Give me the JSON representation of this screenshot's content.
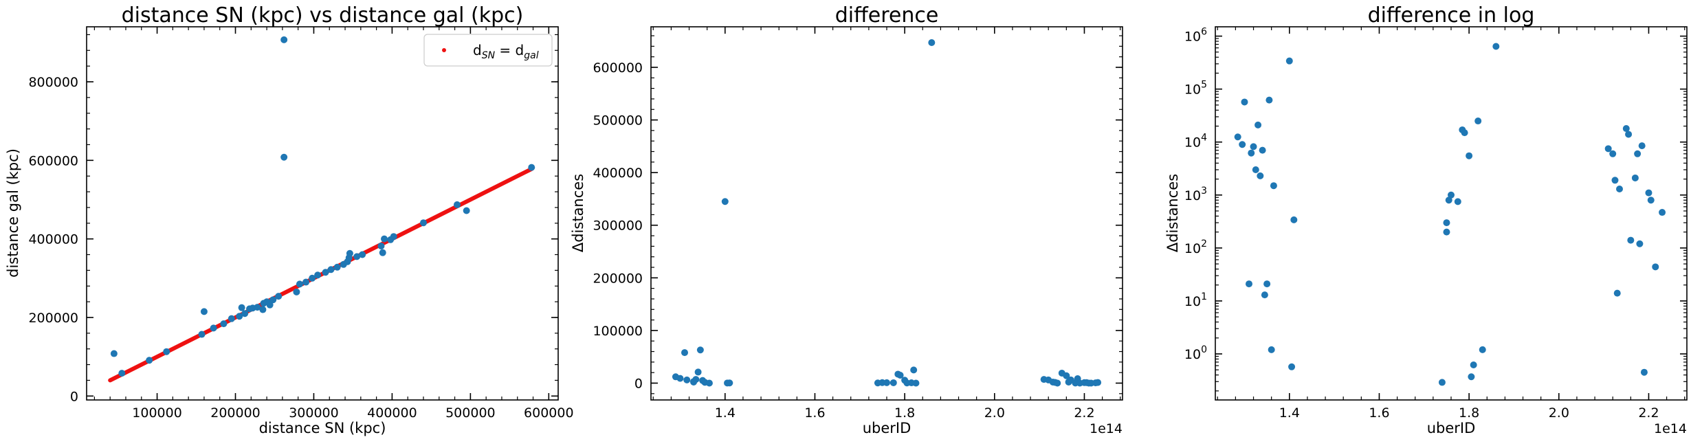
{
  "chart_data": [
    {
      "type": "scatter",
      "title": "distance SN (kpc) vs distance gal (kpc)",
      "xlabel": "distance SN (kpc)",
      "ylabel": "distance gal (kpc)",
      "xlim": [
        10000,
        612000
      ],
      "ylim": [
        -10000,
        940000
      ],
      "xticks": [
        100000,
        200000,
        300000,
        400000,
        500000,
        600000
      ],
      "xticklabels": [
        "100000",
        "200000",
        "300000",
        "400000",
        "500000",
        "600000"
      ],
      "yticks": [
        0,
        200000,
        400000,
        600000,
        800000
      ],
      "yticklabels": [
        "0",
        "200000",
        "400000",
        "600000",
        "800000"
      ],
      "legend": {
        "label": "d",
        "sub1": "SN",
        "eq": " = d",
        "sub2": "gal",
        "placement": "top-right"
      },
      "line": {
        "x": [
          40000,
          578000
        ],
        "y": [
          40000,
          578000
        ],
        "color": "#ee1111"
      },
      "points": [
        [
          45000,
          108000
        ],
        [
          55000,
          58000
        ],
        [
          90000,
          91000
        ],
        [
          112000,
          113000
        ],
        [
          157000,
          157000
        ],
        [
          160000,
          215000
        ],
        [
          172000,
          173000
        ],
        [
          185000,
          184000
        ],
        [
          195000,
          197000
        ],
        [
          205000,
          203000
        ],
        [
          208000,
          225000
        ],
        [
          212000,
          210000
        ],
        [
          218000,
          222000
        ],
        [
          222000,
          224000
        ],
        [
          228000,
          226000
        ],
        [
          235000,
          220000
        ],
        [
          236000,
          236000
        ],
        [
          240000,
          240000
        ],
        [
          244000,
          232000
        ],
        [
          248000,
          245000
        ],
        [
          255000,
          254000
        ],
        [
          262000,
          608000
        ],
        [
          262000,
          907000
        ],
        [
          278000,
          265000
        ],
        [
          282000,
          285000
        ],
        [
          290000,
          290000
        ],
        [
          298000,
          300000
        ],
        [
          305000,
          308000
        ],
        [
          315000,
          315000
        ],
        [
          322000,
          322000
        ],
        [
          330000,
          328000
        ],
        [
          338000,
          335000
        ],
        [
          343000,
          342000
        ],
        [
          345000,
          352000
        ],
        [
          346000,
          363000
        ],
        [
          355000,
          355000
        ],
        [
          362000,
          360000
        ],
        [
          386000,
          382000
        ],
        [
          388000,
          365000
        ],
        [
          390000,
          400000
        ],
        [
          398000,
          398000
        ],
        [
          402000,
          406000
        ],
        [
          440000,
          441000
        ],
        [
          483000,
          487000
        ],
        [
          495000,
          472000
        ],
        [
          578000,
          582000
        ]
      ],
      "point_color": "#1f77b4"
    },
    {
      "type": "scatter",
      "title": "difference",
      "xlabel": "uberID",
      "ylabel": "Δdistances",
      "x_offset_label": "1e14",
      "xlim": [
        1.235,
        2.285
      ],
      "ylim": [
        -32000,
        677000
      ],
      "xticks": [
        1.4,
        1.6,
        1.8,
        2.0,
        2.2
      ],
      "xticklabels": [
        "1.4",
        "1.6",
        "1.8",
        "2.0",
        "2.2"
      ],
      "yticks": [
        0,
        100000,
        200000,
        300000,
        400000,
        500000,
        600000
      ],
      "yticklabels": [
        "0",
        "100000",
        "200000",
        "300000",
        "400000",
        "500000",
        "600000"
      ],
      "points": [
        [
          1.29,
          12000
        ],
        [
          1.3,
          9000
        ],
        [
          1.31,
          58000
        ],
        [
          1.315,
          6000
        ],
        [
          1.33,
          3000
        ],
        [
          1.33,
          2000
        ],
        [
          1.335,
          7000
        ],
        [
          1.34,
          21000
        ],
        [
          1.345,
          63000
        ],
        [
          1.35,
          5000
        ],
        [
          1.355,
          1500
        ],
        [
          1.365,
          1
        ],
        [
          1.4,
          345000
        ],
        [
          1.405,
          200
        ],
        [
          1.41,
          300
        ],
        [
          1.74,
          300
        ],
        [
          1.75,
          1000
        ],
        [
          1.76,
          800
        ],
        [
          1.775,
          700
        ],
        [
          1.785,
          17000
        ],
        [
          1.79,
          15000
        ],
        [
          1.8,
          5500
        ],
        [
          1.805,
          300
        ],
        [
          1.815,
          600
        ],
        [
          1.82,
          25000
        ],
        [
          1.825,
          1
        ],
        [
          1.86,
          647000
        ],
        [
          2.11,
          7000
        ],
        [
          2.12,
          6000
        ],
        [
          2.13,
          2000
        ],
        [
          2.135,
          1300
        ],
        [
          2.14,
          14
        ],
        [
          2.15,
          19000
        ],
        [
          2.16,
          14000
        ],
        [
          2.165,
          2000
        ],
        [
          2.17,
          6000
        ],
        [
          2.18,
          120
        ],
        [
          2.185,
          8500
        ],
        [
          2.19,
          1
        ],
        [
          2.2,
          1000
        ],
        [
          2.205,
          900
        ],
        [
          2.21,
          40
        ],
        [
          2.215,
          50
        ],
        [
          2.225,
          450
        ],
        [
          2.23,
          1200
        ]
      ],
      "point_color": "#1f77b4"
    },
    {
      "type": "scatter",
      "title": "difference in log",
      "xlabel": "uberID",
      "ylabel": "Δdistances",
      "x_offset_label": "1e14",
      "yscale": "log",
      "xlim": [
        1.235,
        2.285
      ],
      "ylim": [
        0.135,
        1500000
      ],
      "xticks": [
        1.4,
        1.6,
        1.8,
        2.0,
        2.2
      ],
      "xticklabels": [
        "1.4",
        "1.6",
        "1.8",
        "2.0",
        "2.2"
      ],
      "yticks": [
        1,
        10,
        100,
        1000,
        10000,
        100000,
        1000000
      ],
      "ytick_exponents": [
        "0",
        "1",
        "2",
        "3",
        "4",
        "5",
        "6"
      ],
      "points": [
        [
          1.285,
          12500
        ],
        [
          1.295,
          9000
        ],
        [
          1.3,
          57000
        ],
        [
          1.31,
          21
        ],
        [
          1.315,
          6200
        ],
        [
          1.32,
          8200
        ],
        [
          1.325,
          3000
        ],
        [
          1.33,
          21000
        ],
        [
          1.335,
          2300
        ],
        [
          1.34,
          7000
        ],
        [
          1.345,
          13
        ],
        [
          1.35,
          21
        ],
        [
          1.355,
          62000
        ],
        [
          1.36,
          1.2
        ],
        [
          1.365,
          1500
        ],
        [
          1.4,
          340000
        ],
        [
          1.405,
          0.57
        ],
        [
          1.41,
          340
        ],
        [
          1.74,
          0.29
        ],
        [
          1.75,
          300
        ],
        [
          1.75,
          200
        ],
        [
          1.755,
          800
        ],
        [
          1.76,
          1000
        ],
        [
          1.775,
          750
        ],
        [
          1.785,
          17000
        ],
        [
          1.79,
          15000
        ],
        [
          1.8,
          5500
        ],
        [
          1.805,
          0.37
        ],
        [
          1.81,
          0.62
        ],
        [
          1.82,
          25000
        ],
        [
          1.83,
          1.2
        ],
        [
          1.86,
          640000
        ],
        [
          2.11,
          7500
        ],
        [
          2.12,
          6000
        ],
        [
          2.125,
          1900
        ],
        [
          2.13,
          14
        ],
        [
          2.135,
          1300
        ],
        [
          2.15,
          18000
        ],
        [
          2.155,
          14000
        ],
        [
          2.16,
          140
        ],
        [
          2.17,
          2100
        ],
        [
          2.175,
          6000
        ],
        [
          2.18,
          120
        ],
        [
          2.185,
          8500
        ],
        [
          2.19,
          0.45
        ],
        [
          2.2,
          1100
        ],
        [
          2.205,
          800
        ],
        [
          2.215,
          44
        ],
        [
          2.23,
          470
        ]
      ],
      "point_color": "#1f77b4"
    }
  ]
}
